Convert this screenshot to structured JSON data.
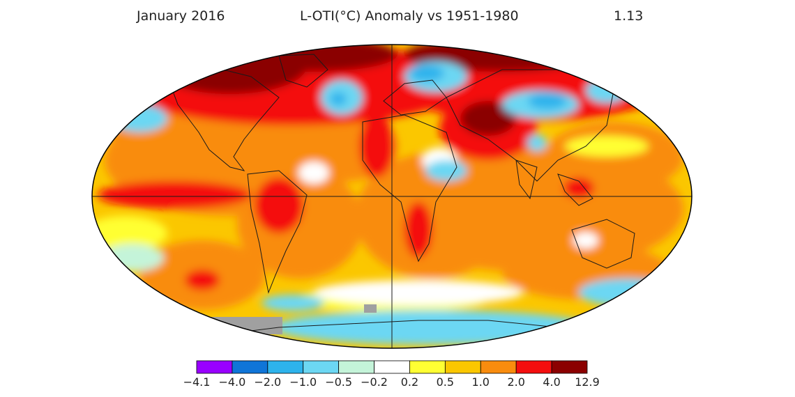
{
  "header": {
    "date": "January 2016",
    "title": "L-OTI(°C) Anomaly vs 1951-1980",
    "global_mean": "1.13"
  },
  "colorbar": {
    "bins": [
      {
        "color": "#9900ff"
      },
      {
        "color": "#0f75d8"
      },
      {
        "color": "#2db3ec"
      },
      {
        "color": "#6cd7f3"
      },
      {
        "color": "#c4f4d9"
      },
      {
        "color": "#ffffff"
      },
      {
        "color": "#ffff33"
      },
      {
        "color": "#fbc700"
      },
      {
        "color": "#f98c0e"
      },
      {
        "color": "#f40e0e"
      },
      {
        "color": "#8b0000"
      }
    ],
    "labels": [
      "−4.1",
      "−4.0",
      "−2.0",
      "−1.0",
      "−0.5",
      "−0.2",
      "0.2",
      "0.5",
      "1.0",
      "2.0",
      "4.0",
      "12.9"
    ]
  },
  "map": {
    "projection": "robinson-like",
    "ocean_base_color": "#fbc700",
    "land_outline_color": "#1a1a1a",
    "missing_data_color": "#a0a0a0"
  }
}
